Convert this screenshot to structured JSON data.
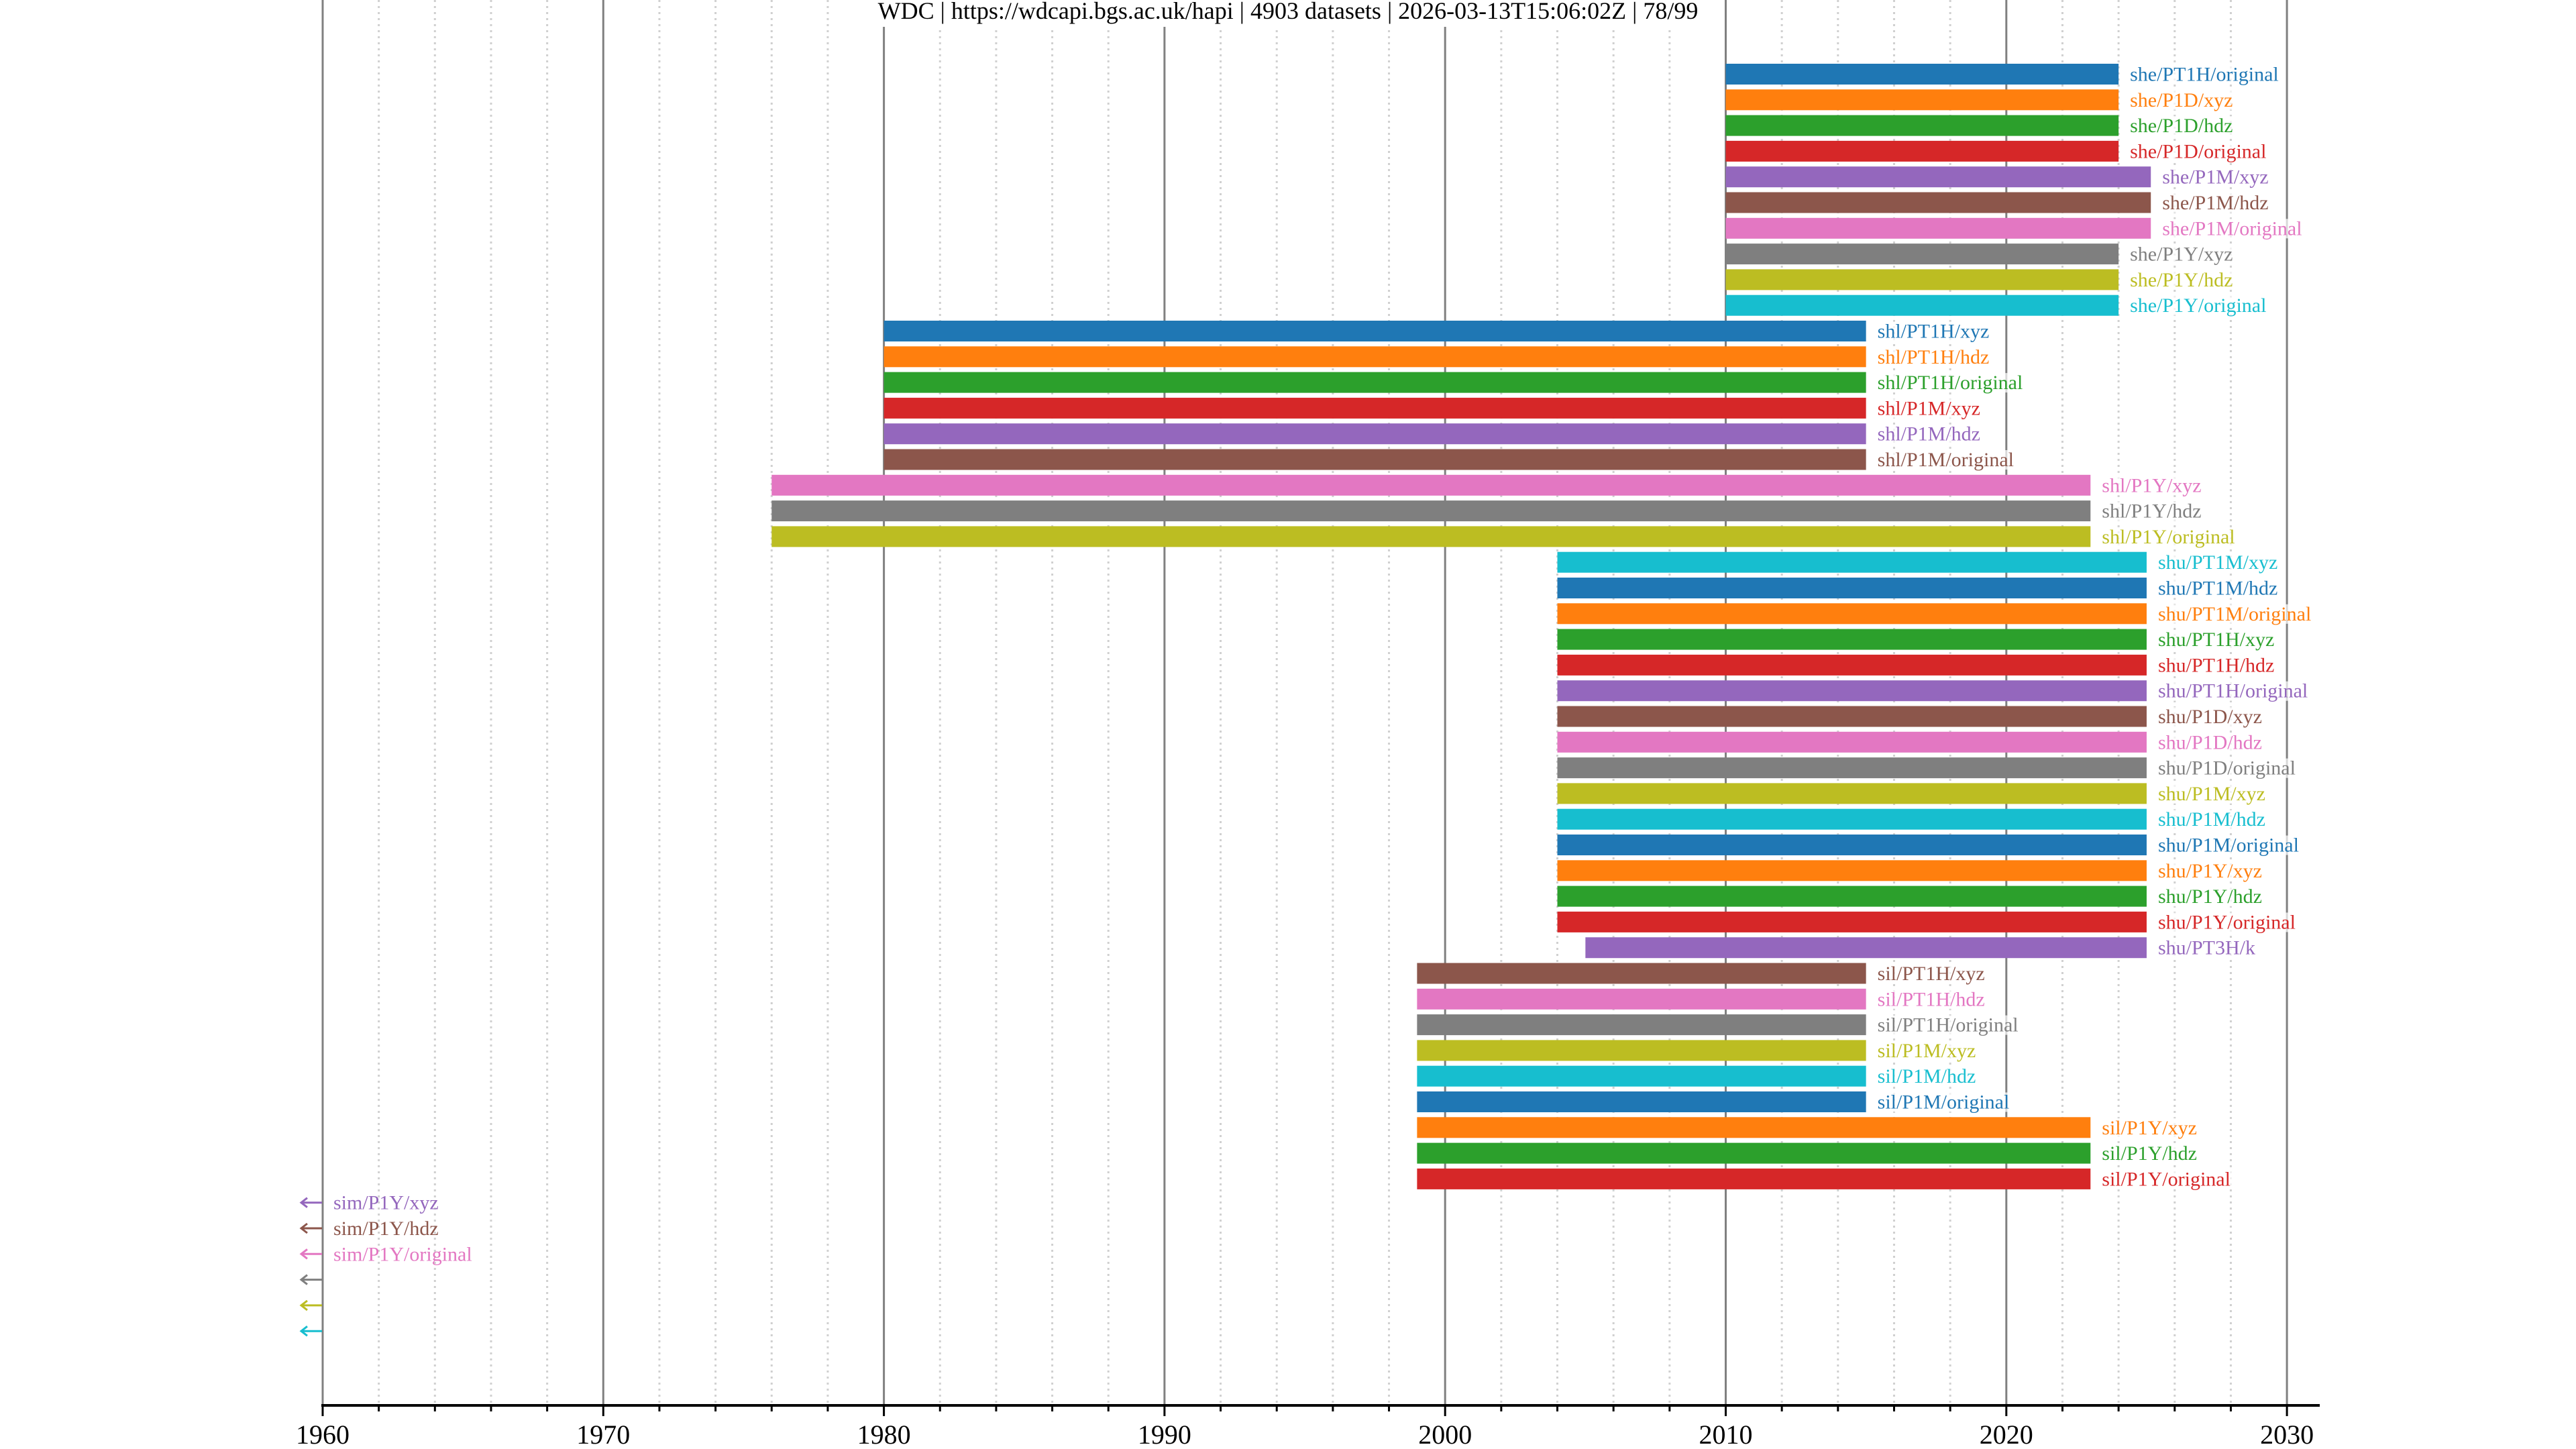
{
  "chart_data": {
    "type": "timeline",
    "title": "WDC | https://wdcapi.bgs.ac.uk/hapi | 4903 datasets | 2026-03-13T15:06:02Z | 78/99",
    "xlabel": "",
    "ylabel": "",
    "xlim": [
      1960,
      2031
    ],
    "x_major_ticks": [
      1960,
      1970,
      1980,
      1990,
      2000,
      2010,
      2020,
      2030
    ],
    "x_tick_labels": [
      "1960",
      "1970",
      "1980",
      "1990",
      "2000",
      "2010",
      "2020",
      "2030"
    ],
    "x_minor_step": 2,
    "grid": true,
    "colors": [
      "#1f77b4",
      "#ff7f0e",
      "#2ca02c",
      "#d62728",
      "#9467bd",
      "#8c564b",
      "#e377c2",
      "#7f7f7f",
      "#bcbd22",
      "#17becf"
    ],
    "series": [
      {
        "name": "she/PT1H/original",
        "start": 2010.0,
        "stop": 2024.0
      },
      {
        "name": "she/P1D/xyz",
        "start": 2010.0,
        "stop": 2024.0
      },
      {
        "name": "she/P1D/hdz",
        "start": 2010.0,
        "stop": 2024.0
      },
      {
        "name": "she/P1D/original",
        "start": 2010.0,
        "stop": 2024.0
      },
      {
        "name": "she/P1M/xyz",
        "start": 2010.0,
        "stop": 2025.15
      },
      {
        "name": "she/P1M/hdz",
        "start": 2010.0,
        "stop": 2025.15
      },
      {
        "name": "she/P1M/original",
        "start": 2010.0,
        "stop": 2025.15
      },
      {
        "name": "she/P1Y/xyz",
        "start": 2010.0,
        "stop": 2024.0
      },
      {
        "name": "she/P1Y/hdz",
        "start": 2010.0,
        "stop": 2024.0
      },
      {
        "name": "she/P1Y/original",
        "start": 2010.0,
        "stop": 2024.0
      },
      {
        "name": "shl/PT1H/xyz",
        "start": 1980.0,
        "stop": 2015.0
      },
      {
        "name": "shl/PT1H/hdz",
        "start": 1980.0,
        "stop": 2015.0
      },
      {
        "name": "shl/PT1H/original",
        "start": 1980.0,
        "stop": 2015.0
      },
      {
        "name": "shl/P1M/xyz",
        "start": 1980.0,
        "stop": 2015.0
      },
      {
        "name": "shl/P1M/hdz",
        "start": 1980.0,
        "stop": 2015.0
      },
      {
        "name": "shl/P1M/original",
        "start": 1980.0,
        "stop": 2015.0
      },
      {
        "name": "shl/P1Y/xyz",
        "start": 1976.0,
        "stop": 2023.0
      },
      {
        "name": "shl/P1Y/hdz",
        "start": 1976.0,
        "stop": 2023.0
      },
      {
        "name": "shl/P1Y/original",
        "start": 1976.0,
        "stop": 2023.0
      },
      {
        "name": "shu/PT1M/xyz",
        "start": 2004.0,
        "stop": 2025.0
      },
      {
        "name": "shu/PT1M/hdz",
        "start": 2004.0,
        "stop": 2025.0
      },
      {
        "name": "shu/PT1M/original",
        "start": 2004.0,
        "stop": 2025.0
      },
      {
        "name": "shu/PT1H/xyz",
        "start": 2004.0,
        "stop": 2025.0
      },
      {
        "name": "shu/PT1H/hdz",
        "start": 2004.0,
        "stop": 2025.0
      },
      {
        "name": "shu/PT1H/original",
        "start": 2004.0,
        "stop": 2025.0
      },
      {
        "name": "shu/P1D/xyz",
        "start": 2004.0,
        "stop": 2025.0
      },
      {
        "name": "shu/P1D/hdz",
        "start": 2004.0,
        "stop": 2025.0
      },
      {
        "name": "shu/P1D/original",
        "start": 2004.0,
        "stop": 2025.0
      },
      {
        "name": "shu/P1M/xyz",
        "start": 2004.0,
        "stop": 2025.0
      },
      {
        "name": "shu/P1M/hdz",
        "start": 2004.0,
        "stop": 2025.0
      },
      {
        "name": "shu/P1M/original",
        "start": 2004.0,
        "stop": 2025.0
      },
      {
        "name": "shu/P1Y/xyz",
        "start": 2004.0,
        "stop": 2025.0
      },
      {
        "name": "shu/P1Y/hdz",
        "start": 2004.0,
        "stop": 2025.0
      },
      {
        "name": "shu/P1Y/original",
        "start": 2004.0,
        "stop": 2025.0
      },
      {
        "name": "shu/PT3H/k",
        "start": 2005.0,
        "stop": 2025.0
      },
      {
        "name": "sil/PT1H/xyz",
        "start": 1999.0,
        "stop": 2015.0
      },
      {
        "name": "sil/PT1H/hdz",
        "start": 1999.0,
        "stop": 2015.0
      },
      {
        "name": "sil/PT1H/original",
        "start": 1999.0,
        "stop": 2015.0
      },
      {
        "name": "sil/P1M/xyz",
        "start": 1999.0,
        "stop": 2015.0
      },
      {
        "name": "sil/P1M/hdz",
        "start": 1999.0,
        "stop": 2015.0
      },
      {
        "name": "sil/P1M/original",
        "start": 1999.0,
        "stop": 2015.0
      },
      {
        "name": "sil/P1Y/xyz",
        "start": 1999.0,
        "stop": 2023.0
      },
      {
        "name": "sil/P1Y/hdz",
        "start": 1999.0,
        "stop": 2023.0
      },
      {
        "name": "sil/P1Y/original",
        "start": 1999.0,
        "stop": 2023.0
      }
    ],
    "out_of_range_left": [
      {
        "name": "sim/P1Y/xyz",
        "marker": "←"
      },
      {
        "name": "sim/P1Y/hdz",
        "marker": "←"
      },
      {
        "name": "sim/P1Y/original",
        "marker": "←"
      },
      {
        "name": "",
        "marker": "←"
      },
      {
        "name": "",
        "marker": "←"
      },
      {
        "name": "",
        "marker": "←"
      }
    ]
  }
}
